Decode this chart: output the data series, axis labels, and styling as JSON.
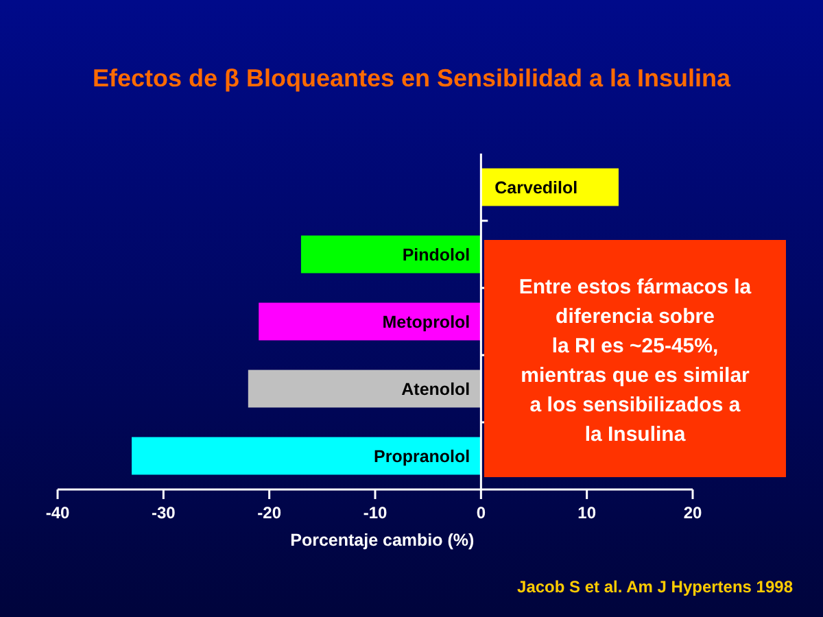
{
  "chart_data": {
    "type": "bar",
    "orientation": "horizontal",
    "title": "Efectos de β Bloqueantes en Sensibilidad a la Insulina",
    "categories": [
      "Carvedilol",
      "Pindolol",
      "Metoprolol",
      "Atenolol",
      "Propranolol"
    ],
    "values": [
      13,
      -17,
      -21,
      -22,
      -33
    ],
    "colors": [
      "#ffff00",
      "#00ff00",
      "#ff00ff",
      "#c0c0c0",
      "#00ffff"
    ],
    "xlim": [
      -40,
      20
    ],
    "xticks": [
      -40,
      -30,
      -20,
      -10,
      0,
      10,
      20
    ],
    "xlabel": "Porcentaje cambio (%)",
    "grid": false,
    "annotations": [
      "Entre estos fármacos la\ndiferencia sobre\nla RI es ~25-45%,\nmientras que es similar\na los sensibilizados a\nla Insulina",
      "Jacob S et al. Am J Hypertens 1998"
    ]
  }
}
